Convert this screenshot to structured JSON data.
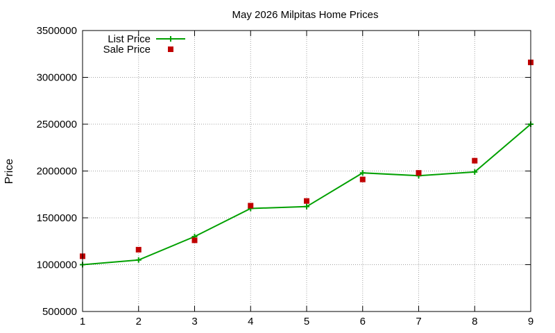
{
  "chart_data": {
    "type": "line",
    "title": "May 2026 Milpitas Home Prices",
    "xlabel": "",
    "ylabel": "Price",
    "x": [
      1,
      2,
      3,
      4,
      5,
      6,
      7,
      8,
      9
    ],
    "xlim": [
      1,
      9
    ],
    "ylim": [
      500000,
      3500000
    ],
    "xticks": [
      "1",
      "2",
      "3",
      "4",
      "5",
      "6",
      "7",
      "8",
      "9"
    ],
    "yticks": [
      "500000",
      "1000000",
      "1500000",
      "2000000",
      "2500000",
      "3000000",
      "3500000"
    ],
    "grid": true,
    "legend_position": "top-left",
    "series": [
      {
        "name": "List Price",
        "style": "line+cross",
        "color": "#00a000",
        "values": [
          1000000,
          1050000,
          1300000,
          1600000,
          1620000,
          1980000,
          1950000,
          1990000,
          2500000
        ]
      },
      {
        "name": "Sale Price",
        "style": "square-points",
        "color": "#c00000",
        "values": [
          1090000,
          1160000,
          1260000,
          1630000,
          1680000,
          1910000,
          1980000,
          2110000,
          3160000
        ]
      }
    ]
  }
}
